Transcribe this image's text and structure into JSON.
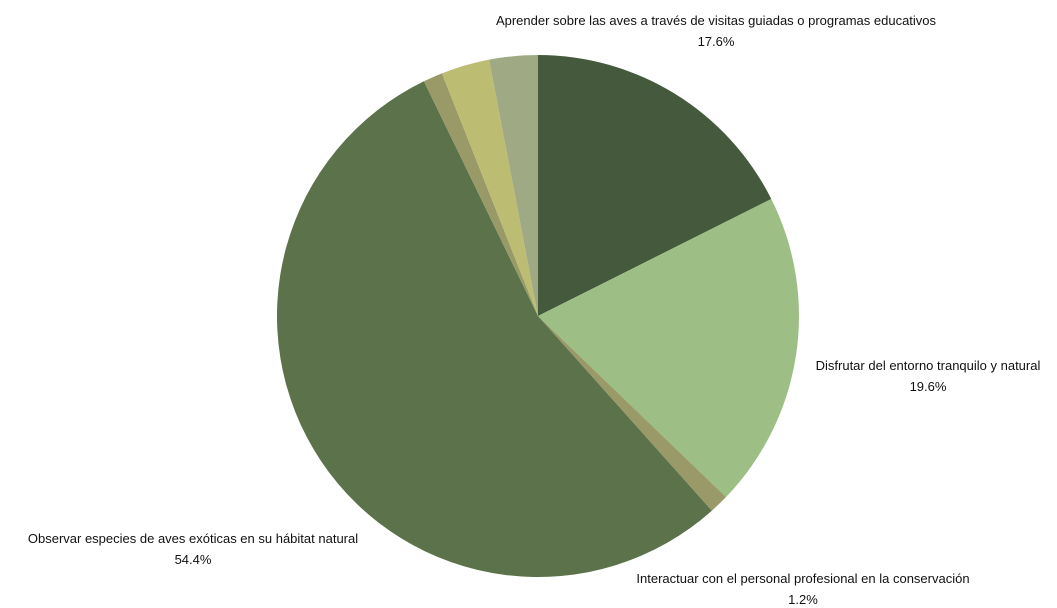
{
  "chart_data": {
    "type": "pie",
    "title": "",
    "slices": [
      {
        "label": "Aprender sobre las aves a través de visitas guiadas o programas educativos",
        "value": 17.6,
        "pct": "17.6%",
        "color": "#455a3c",
        "show_label": true
      },
      {
        "label": "Disfrutar del entorno tranquilo y natural",
        "value": 19.6,
        "pct": "19.6%",
        "color": "#9dbf85",
        "show_label": true
      },
      {
        "label": "Interactuar con el personal profesional en la conservación",
        "value": 1.2,
        "pct": "1.2%",
        "color": "#9a9a68",
        "show_label": true
      },
      {
        "label": "Observar especies de aves exóticas en su hábitat natural",
        "value": 54.4,
        "pct": "54.4%",
        "color": "#5b724b",
        "show_label": true
      },
      {
        "label": "",
        "value": 1.2,
        "pct": "",
        "color": "#999a67",
        "show_label": false
      },
      {
        "label": "",
        "value": 3.0,
        "pct": "",
        "color": "#bcbc73",
        "show_label": false
      },
      {
        "label": "",
        "value": 3.0,
        "pct": "",
        "color": "#9faa84",
        "show_label": false
      }
    ]
  }
}
